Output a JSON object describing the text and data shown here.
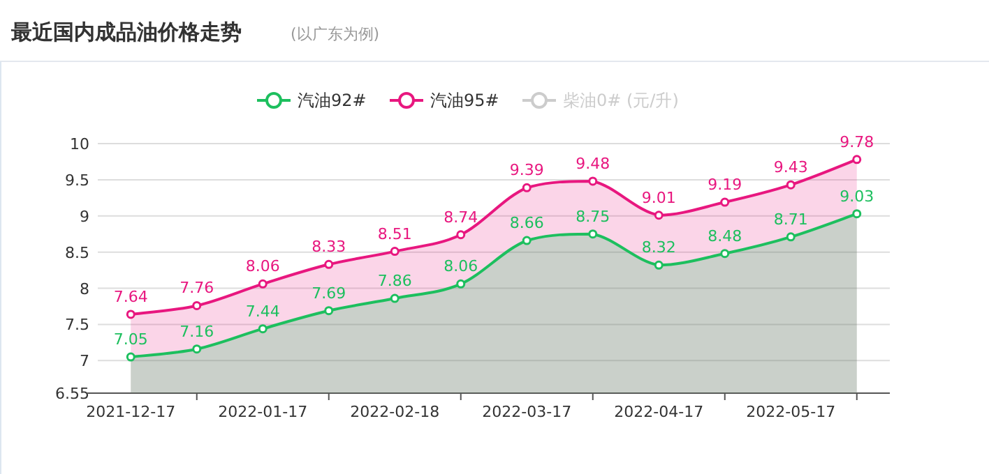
{
  "chart_data": {
    "type": "area",
    "title": "最近国内成品油价格走势",
    "subtitle": "(以广东为例)",
    "categories": [
      "2021-12-17",
      null,
      "2022-01-17",
      null,
      "2022-02-18",
      null,
      "2022-03-17",
      null,
      "2022-04-17",
      null,
      "2022-05-17",
      null
    ],
    "series": [
      {
        "name": "汽油92#",
        "color": "#1dbf5e",
        "values": [
          7.05,
          7.16,
          7.44,
          7.69,
          7.86,
          8.06,
          8.66,
          8.75,
          8.32,
          8.48,
          8.71,
          9.03
        ]
      },
      {
        "name": "汽油95#",
        "color": "#e8177f",
        "values": [
          7.64,
          7.76,
          8.06,
          8.33,
          8.51,
          8.74,
          9.39,
          9.48,
          9.01,
          9.19,
          9.43,
          9.78
        ]
      },
      {
        "name": "柴油0# (元/升)",
        "color": "#cccccc",
        "values": [
          null,
          null,
          null,
          null,
          null,
          null,
          null,
          null,
          null,
          null,
          null,
          null
        ]
      }
    ],
    "ylim": [
      6.55,
      10
    ],
    "yticks": [
      6.55,
      7,
      7.5,
      8,
      8.5,
      9,
      9.5,
      10
    ],
    "grid": "y",
    "legend": "top",
    "marker": "circle",
    "data_labels": true
  }
}
